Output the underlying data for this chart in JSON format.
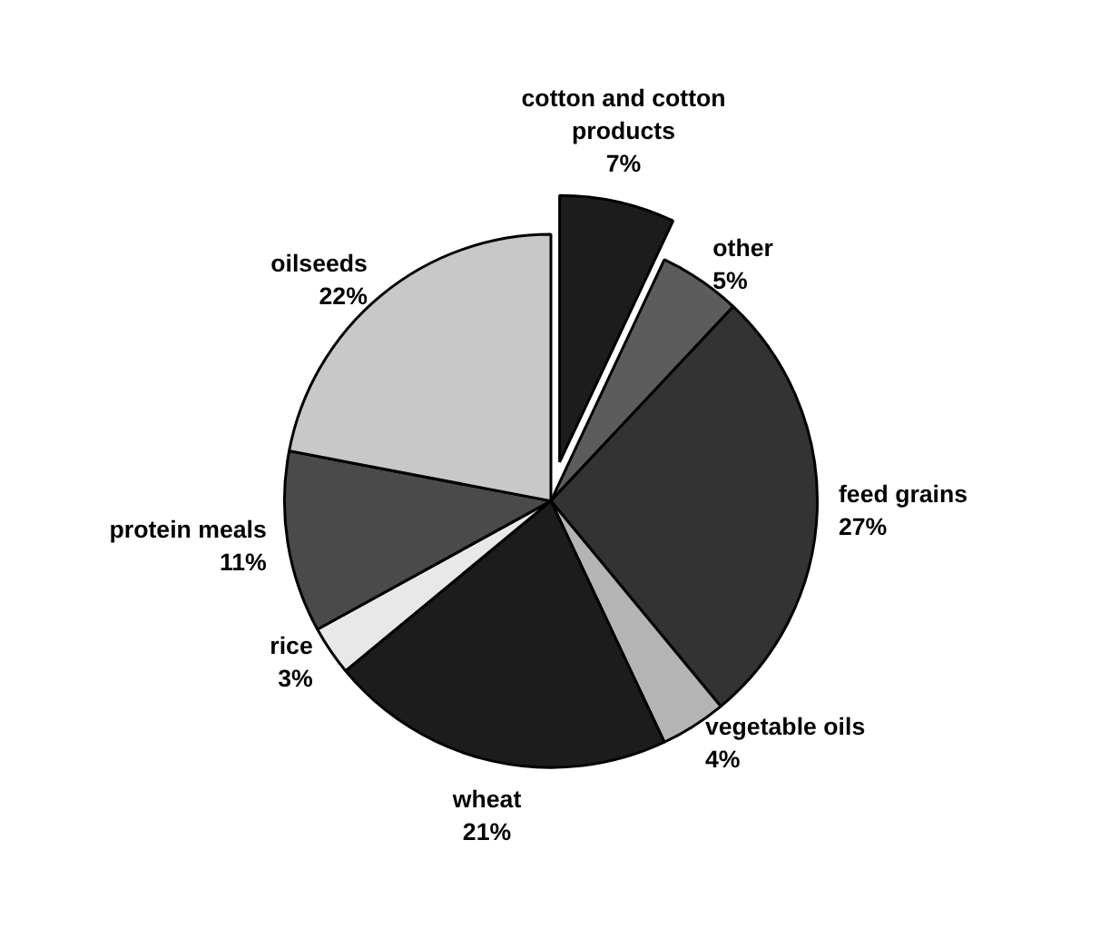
{
  "chart_data": {
    "type": "pie",
    "categories": [
      "cotton and cotton products",
      "other",
      "feed grains",
      "vegetable oils",
      "wheat",
      "rice",
      "protein meals",
      "oilseeds"
    ],
    "values": [
      7,
      5,
      27,
      4,
      21,
      3,
      11,
      22
    ],
    "value_labels": [
      "7%",
      "5%",
      "27%",
      "4%",
      "21%",
      "3%",
      "11%",
      "22%"
    ],
    "colors": [
      "#1c1c1c",
      "#5c5c5c",
      "#333333",
      "#b4b4b4",
      "#1c1c1c",
      "#e8e8e8",
      "#4a4a4a",
      "#c8c8c8"
    ]
  }
}
